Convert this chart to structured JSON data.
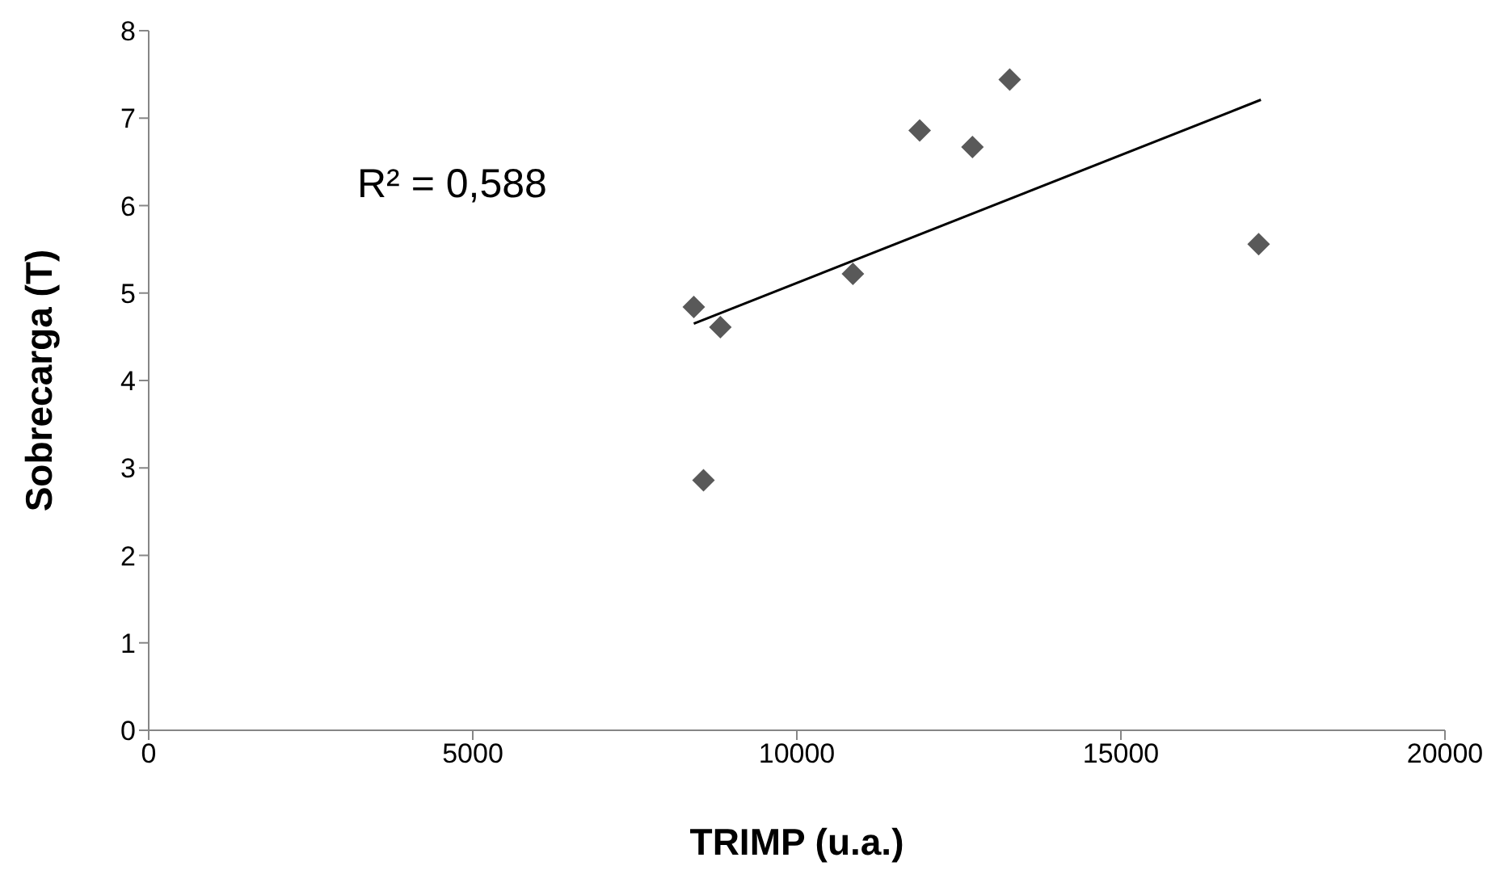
{
  "chart_data": {
    "type": "scatter",
    "xlabel": "TRIMP (u.a.)",
    "ylabel": "Sobrecarga (T)",
    "annotations": [
      "R² = 0,588"
    ],
    "xlim": [
      0,
      20000
    ],
    "xticks": [
      0,
      5000,
      10000,
      15000,
      20000
    ],
    "ylim": [
      0,
      8
    ],
    "yticks": [
      0,
      1,
      2,
      3,
      4,
      5,
      6,
      7,
      8
    ],
    "grid": false,
    "legend": false,
    "series": [
      {
        "marker": "diamond",
        "color": "#595959",
        "x": [
          8410,
          8820,
          8560,
          10865,
          11895,
          12710,
          13285,
          17125
        ],
        "values": [
          4.84,
          4.61,
          2.86,
          5.22,
          6.86,
          6.67,
          7.44,
          5.56
        ]
      },
      {
        "type": "line",
        "marker": "none",
        "color": "#000000",
        "x": [
          8410,
          17160
        ],
        "values": [
          4.65,
          7.21
        ]
      }
    ]
  }
}
